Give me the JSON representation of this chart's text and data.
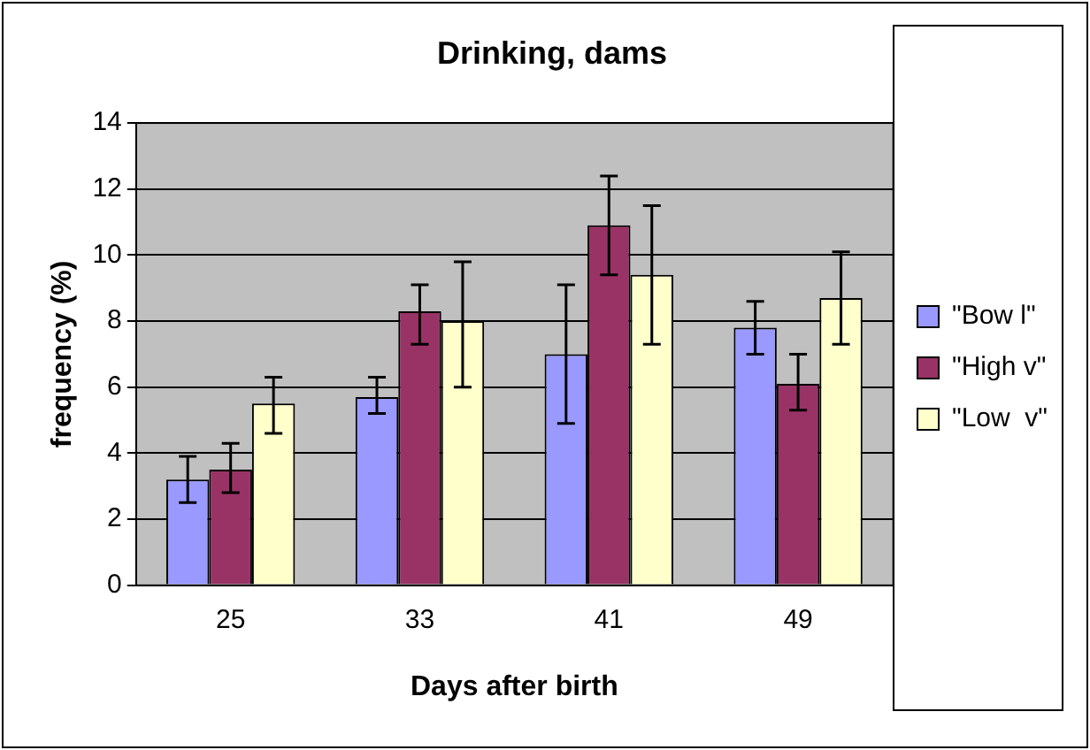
{
  "chart_data": {
    "type": "bar",
    "title": "Drinking, dams",
    "xlabel": "Days after birth",
    "ylabel": "frequency (%)",
    "categories": [
      "25",
      "33",
      "41",
      "49"
    ],
    "series": [
      {
        "name": "\"Bow l\"",
        "color": "#9999ff",
        "values": [
          3.2,
          5.7,
          7.0,
          7.8
        ],
        "errors": [
          [
            2.5,
            3.9
          ],
          [
            5.2,
            6.3
          ],
          [
            4.9,
            9.1
          ],
          [
            7.0,
            8.6
          ]
        ]
      },
      {
        "name": "\"High v\"",
        "color": "#993366",
        "values": [
          3.5,
          8.3,
          10.9,
          6.1
        ],
        "errors": [
          [
            2.8,
            4.3
          ],
          [
            7.3,
            9.1
          ],
          [
            9.4,
            12.4
          ],
          [
            5.3,
            7.0
          ]
        ]
      },
      {
        "name": "\"Low  v\"",
        "color": "#ffffcc",
        "values": [
          5.5,
          8.0,
          9.4,
          8.7
        ],
        "errors": [
          [
            4.6,
            6.3
          ],
          [
            6.0,
            9.8
          ],
          [
            7.3,
            11.5
          ],
          [
            7.3,
            10.1
          ]
        ]
      }
    ],
    "ylim": [
      0,
      14
    ],
    "yticks": [
      0,
      2,
      4,
      6,
      8,
      10,
      12,
      14
    ],
    "grid": "y",
    "legend": "right"
  }
}
